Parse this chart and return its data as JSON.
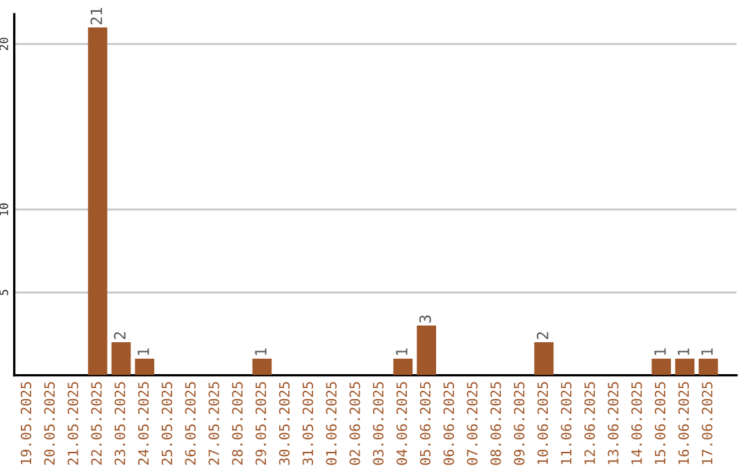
{
  "chart_data": {
    "type": "bar",
    "categories": [
      "19.05.2025",
      "20.05.2025",
      "21.05.2025",
      "22.05.2025",
      "23.05.2025",
      "24.05.2025",
      "25.05.2025",
      "26.05.2025",
      "27.05.2025",
      "28.05.2025",
      "29.05.2025",
      "30.05.2025",
      "31.05.2025",
      "01.06.2025",
      "02.06.2025",
      "03.06.2025",
      "04.06.2025",
      "05.06.2025",
      "06.06.2025",
      "07.06.2025",
      "08.06.2025",
      "09.06.2025",
      "10.06.2025",
      "11.06.2025",
      "12.06.2025",
      "13.06.2025",
      "14.06.2025",
      "15.06.2025",
      "16.06.2025",
      "17.06.2025"
    ],
    "values": [
      0,
      0,
      0,
      21,
      2,
      1,
      0,
      0,
      0,
      0,
      1,
      0,
      0,
      0,
      0,
      0,
      1,
      3,
      0,
      0,
      0,
      0,
      2,
      0,
      0,
      0,
      0,
      1,
      1,
      1
    ],
    "value_labels": [
      null,
      null,
      null,
      "21",
      "2",
      "1",
      null,
      null,
      null,
      null,
      "1",
      null,
      null,
      null,
      null,
      null,
      "1",
      "3",
      null,
      null,
      null,
      null,
      "2",
      null,
      null,
      null,
      null,
      "1",
      "1",
      "1"
    ],
    "color": "#a0572a",
    "ylim": [
      0,
      21.8
    ],
    "yticks": [
      5,
      10,
      20
    ],
    "grid": "y",
    "legend": false
  }
}
